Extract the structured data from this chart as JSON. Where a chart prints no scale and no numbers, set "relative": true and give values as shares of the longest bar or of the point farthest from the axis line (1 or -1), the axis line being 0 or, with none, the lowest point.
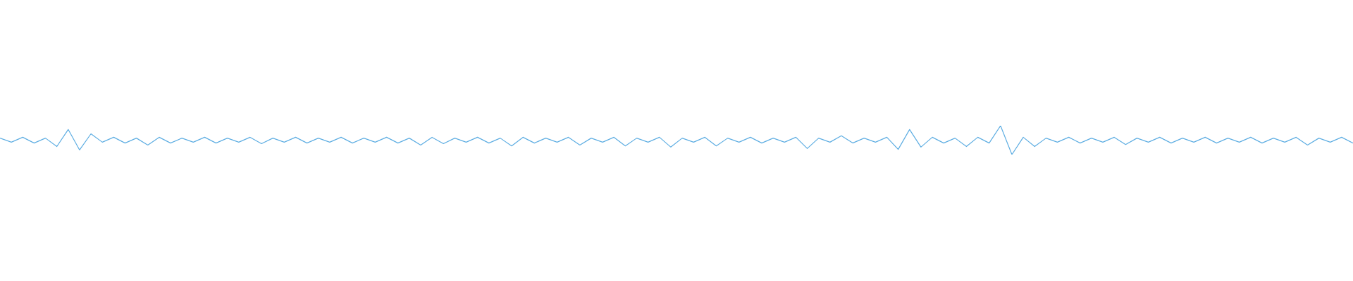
{
  "chart_data": {
    "type": "line",
    "relative": true,
    "color": "#5dade2",
    "categories": [
      null,
      null,
      null,
      null,
      null,
      null,
      null,
      null,
      null,
      null,
      null,
      null,
      null,
      null,
      null,
      null,
      null,
      null,
      null,
      null,
      null,
      null,
      null,
      null,
      null,
      null,
      null,
      null,
      null,
      null,
      null,
      null,
      null,
      null,
      null,
      null,
      null,
      null,
      null,
      null,
      null,
      null,
      null,
      null,
      null,
      null,
      null,
      null,
      null,
      null,
      null,
      null,
      null,
      null,
      null,
      null,
      null,
      null,
      null,
      null,
      null,
      null,
      null,
      null,
      null,
      null,
      null,
      null,
      null,
      null,
      null,
      null,
      null,
      null,
      null,
      null,
      null,
      null,
      null,
      null,
      null,
      null,
      null,
      null,
      null,
      null,
      null,
      null,
      null,
      null,
      null,
      null,
      null,
      null,
      null,
      null,
      null,
      null,
      null,
      null,
      null,
      null,
      null,
      null,
      null,
      null,
      null,
      null,
      null,
      null,
      null,
      null,
      null,
      null,
      null,
      null,
      null,
      null,
      null,
      null
    ],
    "values": [
      0.57,
      0.43,
      0.6,
      0.4,
      0.57,
      0.28,
      0.87,
      0.16,
      0.72,
      0.43,
      0.6,
      0.4,
      0.57,
      0.33,
      0.6,
      0.4,
      0.57,
      0.43,
      0.6,
      0.4,
      0.57,
      0.43,
      0.6,
      0.38,
      0.57,
      0.43,
      0.6,
      0.4,
      0.57,
      0.43,
      0.6,
      0.4,
      0.57,
      0.43,
      0.6,
      0.4,
      0.57,
      0.33,
      0.6,
      0.38,
      0.57,
      0.43,
      0.6,
      0.4,
      0.57,
      0.3,
      0.6,
      0.4,
      0.57,
      0.43,
      0.6,
      0.33,
      0.57,
      0.43,
      0.6,
      0.3,
      0.57,
      0.43,
      0.6,
      0.26,
      0.57,
      0.43,
      0.6,
      0.3,
      0.57,
      0.43,
      0.6,
      0.4,
      0.57,
      0.43,
      0.6,
      0.21,
      0.57,
      0.43,
      0.65,
      0.4,
      0.57,
      0.43,
      0.6,
      0.18,
      0.87,
      0.26,
      0.6,
      0.4,
      0.57,
      0.28,
      0.6,
      0.4,
      1,
      0,
      0.6,
      0.28,
      0.57,
      0.43,
      0.6,
      0.4,
      0.57,
      0.43,
      0.6,
      0.35,
      0.57,
      0.43,
      0.6,
      0.4,
      0.57,
      0.43,
      0.6,
      0.4,
      0.57,
      0.43,
      0.6,
      0.4,
      0.57,
      0.43,
      0.6,
      0.33,
      0.57,
      0.43,
      0.6,
      0.4
    ]
  }
}
